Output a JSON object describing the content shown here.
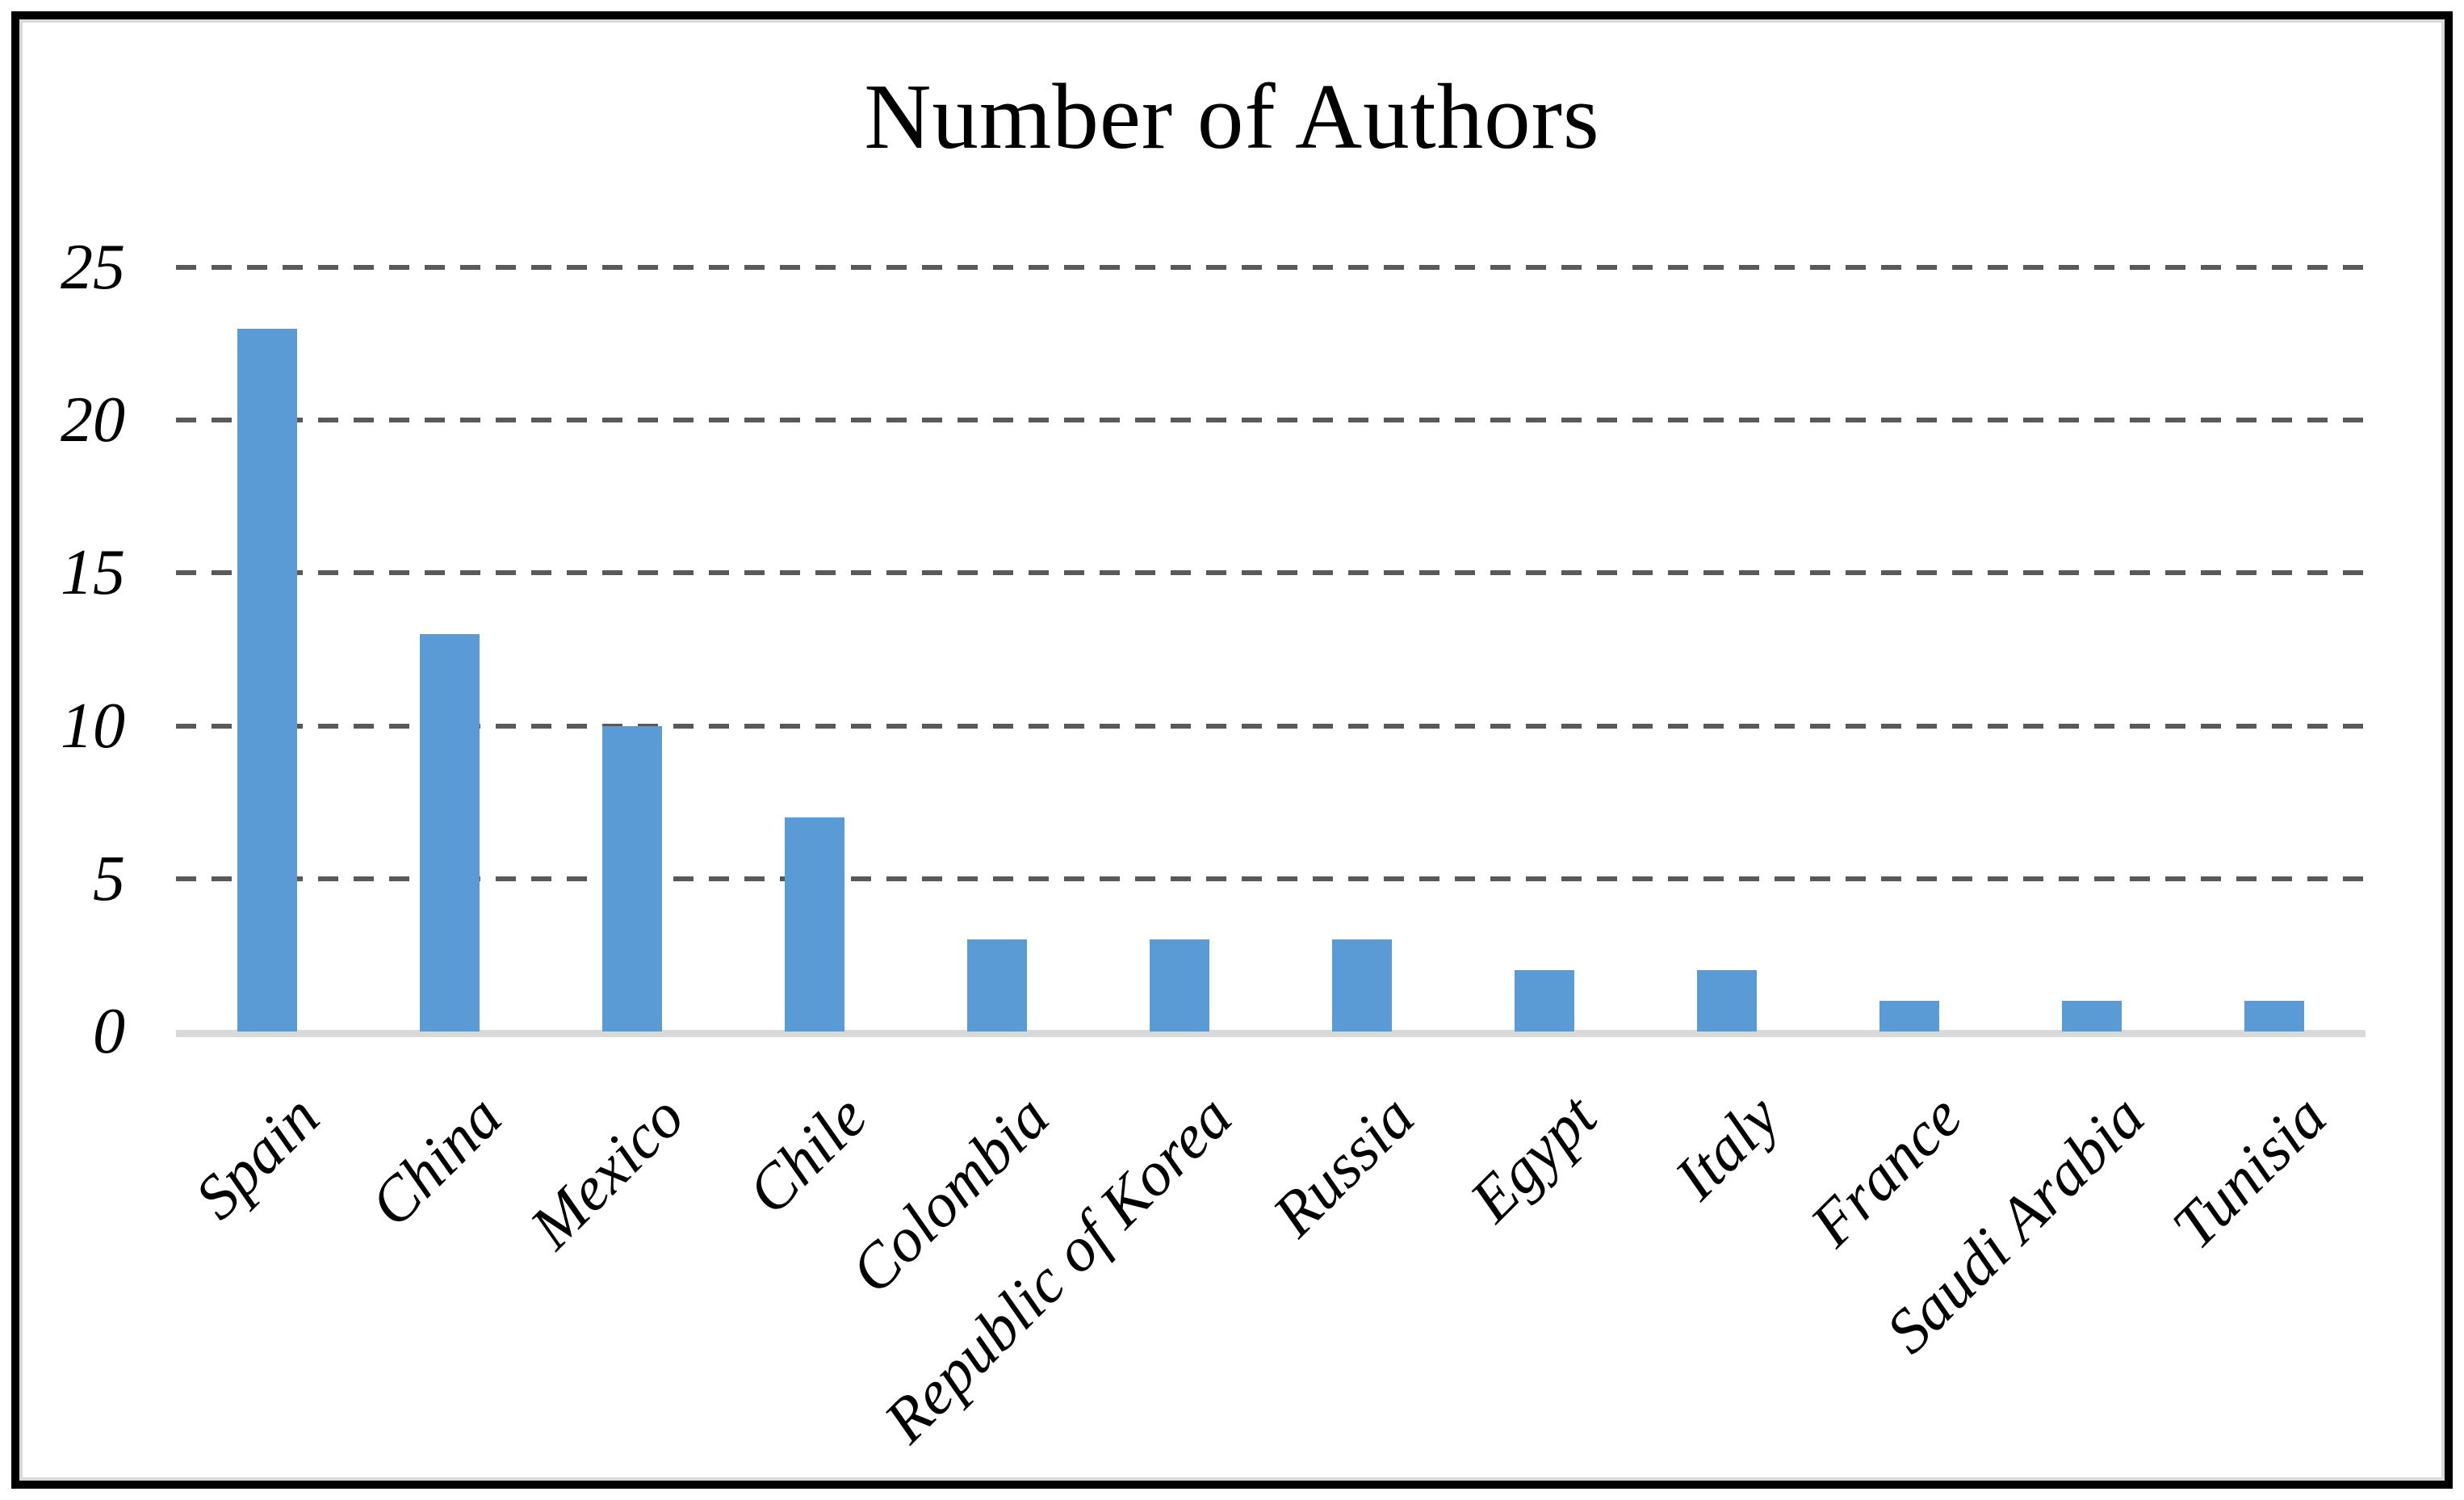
{
  "chart_data": {
    "type": "bar",
    "title": "Number of Authors",
    "categories": [
      "Spain",
      "China",
      "Mexico",
      "Chile",
      "Colombia",
      "Republic of Korea",
      "Russia",
      "Egypt",
      "Italy",
      "France",
      "Saudi Arabia",
      "Tunisia"
    ],
    "values": [
      23,
      13,
      10,
      7,
      3,
      3,
      3,
      2,
      2,
      1,
      1,
      1
    ],
    "series": [
      {
        "name": "Number of Authors",
        "values": [
          23,
          13,
          10,
          7,
          3,
          3,
          3,
          2,
          2,
          1,
          1,
          1
        ]
      }
    ],
    "xlabel": "",
    "ylabel": "",
    "y_ticks": [
      0,
      5,
      10,
      15,
      20,
      25
    ],
    "ylim": [
      0,
      25
    ],
    "grid": "horizontal-dashed",
    "legend_position": "none",
    "x_label_rotation_deg": 45,
    "colors": {
      "bar_fill": "#5B9BD5",
      "gridline": "#595959",
      "axis_baseline": "#d9d9d9",
      "frame_border": "#000000",
      "frame_inner_edge": "#d9d9d9",
      "text": "#000000",
      "background": "#ffffff"
    }
  }
}
